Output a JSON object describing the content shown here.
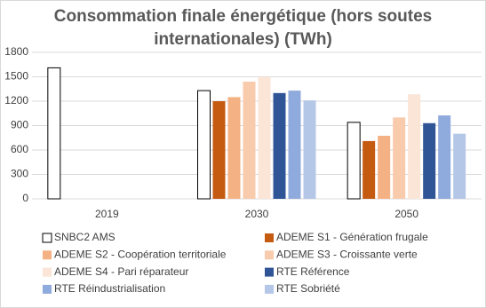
{
  "chart_data": {
    "type": "bar",
    "title": "Consommation finale énergétique (hors soutes internationales) (TWh)",
    "categories": [
      "2019",
      "2030",
      "2050"
    ],
    "series": [
      {
        "name": "SNBC2 AMS",
        "color": "#ffffff",
        "values": [
          1610,
          1330,
          940
        ]
      },
      {
        "name": "ADEME S1 - Génération frugale",
        "color": "#c55a11",
        "values": [
          null,
          1200,
          710
        ]
      },
      {
        "name": "ADEME S2 - Coopération territoriale",
        "color": "#f4b183",
        "values": [
          null,
          1250,
          775
        ]
      },
      {
        "name": "ADEME S3 - Croissante verte",
        "color": "#f8cbad",
        "values": [
          null,
          1440,
          1000
        ]
      },
      {
        "name": "ADEME S4 - Pari réparateur",
        "color": "#fbe5d6",
        "values": [
          null,
          1500,
          1285
        ]
      },
      {
        "name": "RTE Référence",
        "color": "#2f5597",
        "values": [
          null,
          1300,
          930
        ]
      },
      {
        "name": "RTE Réindustrialisation",
        "color": "#8faadc",
        "values": [
          null,
          1330,
          1025
        ]
      },
      {
        "name": "RTE Sobriété",
        "color": "#b4c7e7",
        "values": [
          null,
          1210,
          800
        ]
      }
    ],
    "ylim": [
      0,
      1800
    ],
    "yticks": [
      0,
      300,
      600,
      900,
      1200,
      1500,
      1800
    ],
    "grid": true,
    "legend": "bottom"
  }
}
